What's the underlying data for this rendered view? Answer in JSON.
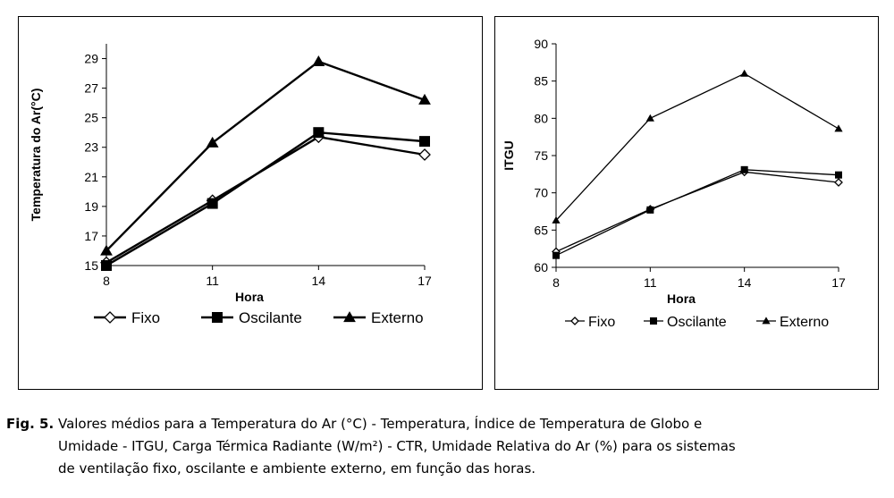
{
  "chart_data": [
    {
      "type": "line",
      "title": "",
      "xlabel": "Hora",
      "ylabel": "Temperatura do Ar(°C)",
      "x": [
        8,
        11,
        14,
        17
      ],
      "xticks": [
        "8",
        "11",
        "14",
        "17"
      ],
      "ylim": [
        15,
        30
      ],
      "yticks": [
        "15",
        "17",
        "19",
        "21",
        "23",
        "25",
        "27",
        "29"
      ],
      "grid": false,
      "legend_position": "bottom",
      "series": [
        {
          "name": "Fixo",
          "marker": "diamond-open",
          "values": [
            15.2,
            19.4,
            23.7,
            22.5
          ]
        },
        {
          "name": "Oscilante",
          "marker": "square-filled",
          "values": [
            15.0,
            19.2,
            24.0,
            23.4
          ]
        },
        {
          "name": "Externo",
          "marker": "triangle-filled",
          "values": [
            16.0,
            23.3,
            28.8,
            26.2
          ]
        }
      ]
    },
    {
      "type": "line",
      "title": "",
      "xlabel": "Hora",
      "ylabel": "ITGU",
      "x": [
        8,
        11,
        14,
        17
      ],
      "xticks": [
        "8",
        "11",
        "14",
        "17"
      ],
      "ylim": [
        60,
        90
      ],
      "yticks": [
        "60",
        "65",
        "70",
        "75",
        "80",
        "85",
        "90"
      ],
      "grid": false,
      "legend_position": "bottom",
      "series": [
        {
          "name": "Fixo",
          "marker": "diamond-open",
          "values": [
            62.1,
            67.8,
            72.8,
            71.4
          ]
        },
        {
          "name": "Oscilante",
          "marker": "square-filled",
          "values": [
            61.6,
            67.7,
            73.1,
            72.4
          ]
        },
        {
          "name": "Externo",
          "marker": "triangle-filled",
          "values": [
            66.3,
            80.0,
            86.0,
            78.6
          ]
        }
      ]
    }
  ],
  "caption": {
    "label": "Fig. 5.",
    "line1": "Valores médios para a Temperatura do Ar (°C) - Temperatura, Índice de Temperatura de Globo e",
    "line2": "Umidade - ITGU, Carga Térmica Radiante (W/m²) - CTR, Umidade Relativa do Ar (%) para os sistemas",
    "line3": "de ventilação fixo, oscilante e ambiente externo, em função das horas."
  }
}
